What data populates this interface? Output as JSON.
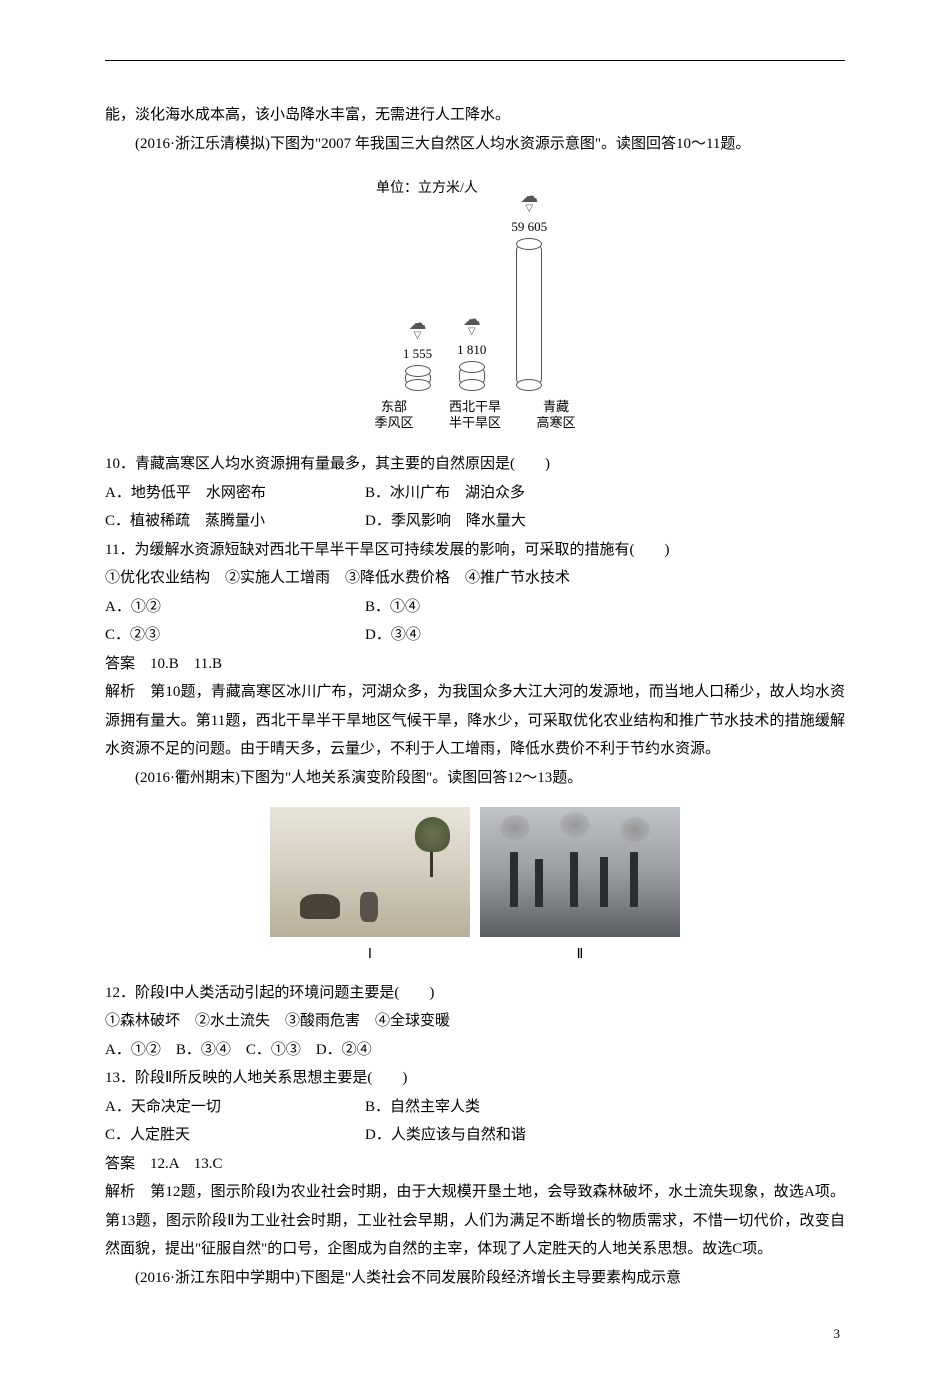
{
  "top_continuation": "能，淡化海水成本高，该小岛降水丰富，无需进行人工降水。",
  "intro1": "(2016·浙江乐清模拟)下图为\"2007 年我国三大自然区人均水资源示意图\"。读图回答10～11题。",
  "chart1": {
    "unit": "单位：立方米/人",
    "bars": [
      {
        "value": "1 555",
        "height": 18,
        "label_line1": "东部",
        "label_line2": "季风区"
      },
      {
        "value": "1 810",
        "height": 22,
        "label_line1": "西北干旱",
        "label_line2": "半干旱区"
      },
      {
        "value": "59 605",
        "height": 145,
        "label_line1": "青藏",
        "label_line2": "高寒区"
      }
    ]
  },
  "q10": {
    "stem": "10．青藏高寒区人均水资源拥有量最多，其主要的自然原因是(　　)",
    "optA": "A．地势低平　水网密布",
    "optB": "B．冰川广布　湖泊众多",
    "optC": "C．植被稀疏　蒸腾量小",
    "optD": "D．季风影响　降水量大"
  },
  "q11": {
    "stem": "11．为缓解水资源短缺对西北干旱半干旱区可持续发展的影响，可采取的措施有(　　)",
    "opts_line": "①优化农业结构　②实施人工增雨　③降低水费价格　④推广节水技术",
    "optA": "A．①②",
    "optB": "B．①④",
    "optC": "C．②③",
    "optD": "D．③④"
  },
  "answer1": "答案　10.B　11.B",
  "explain1": "解析　第10题，青藏高寒区冰川广布，河湖众多，为我国众多大江大河的发源地，而当地人口稀少，故人均水资源拥有量大。第11题，西北干旱半干旱地区气候干旱，降水少，可采取优化农业结构和推广节水技术的措施缓解水资源不足的问题。由于晴天多，云量少，不利于人工增雨，降低水费价不利于节约水资源。",
  "intro2": "(2016·衢州期末)下图为\"人地关系演变阶段图\"。读图回答12～13题。",
  "img_labels": {
    "left": "Ⅰ",
    "right": "Ⅱ"
  },
  "q12": {
    "stem": "12．阶段Ⅰ中人类活动引起的环境问题主要是(　　)",
    "opts_line": "①森林破坏　②水土流失　③酸雨危害　④全球变暖",
    "opts": "A．①②　B．③④　C．①③　D．②④"
  },
  "q13": {
    "stem": "13．阶段Ⅱ所反映的人地关系思想主要是(　　)",
    "optA": "A．天命决定一切",
    "optB": "B．自然主宰人类",
    "optC": "C．人定胜天",
    "optD": "D．人类应该与自然和谐"
  },
  "answer2": "答案　12.A　13.C",
  "explain2": "解析　第12题，图示阶段Ⅰ为农业社会时期，由于大规模开垦土地，会导致森林破坏，水土流失现象，故选A项。第13题，图示阶段Ⅱ为工业社会时期，工业社会早期，人们为满足不断增长的物质需求，不惜一切代价，改变自然面貌，提出\"征服自然\"的口号，企图成为自然的主宰，体现了人定胜天的人地关系思想。故选C项。",
  "intro3": "(2016·浙江东阳中学期中)下图是\"人类社会不同发展阶段经济增长主导要素构成示意",
  "page_number": "3"
}
